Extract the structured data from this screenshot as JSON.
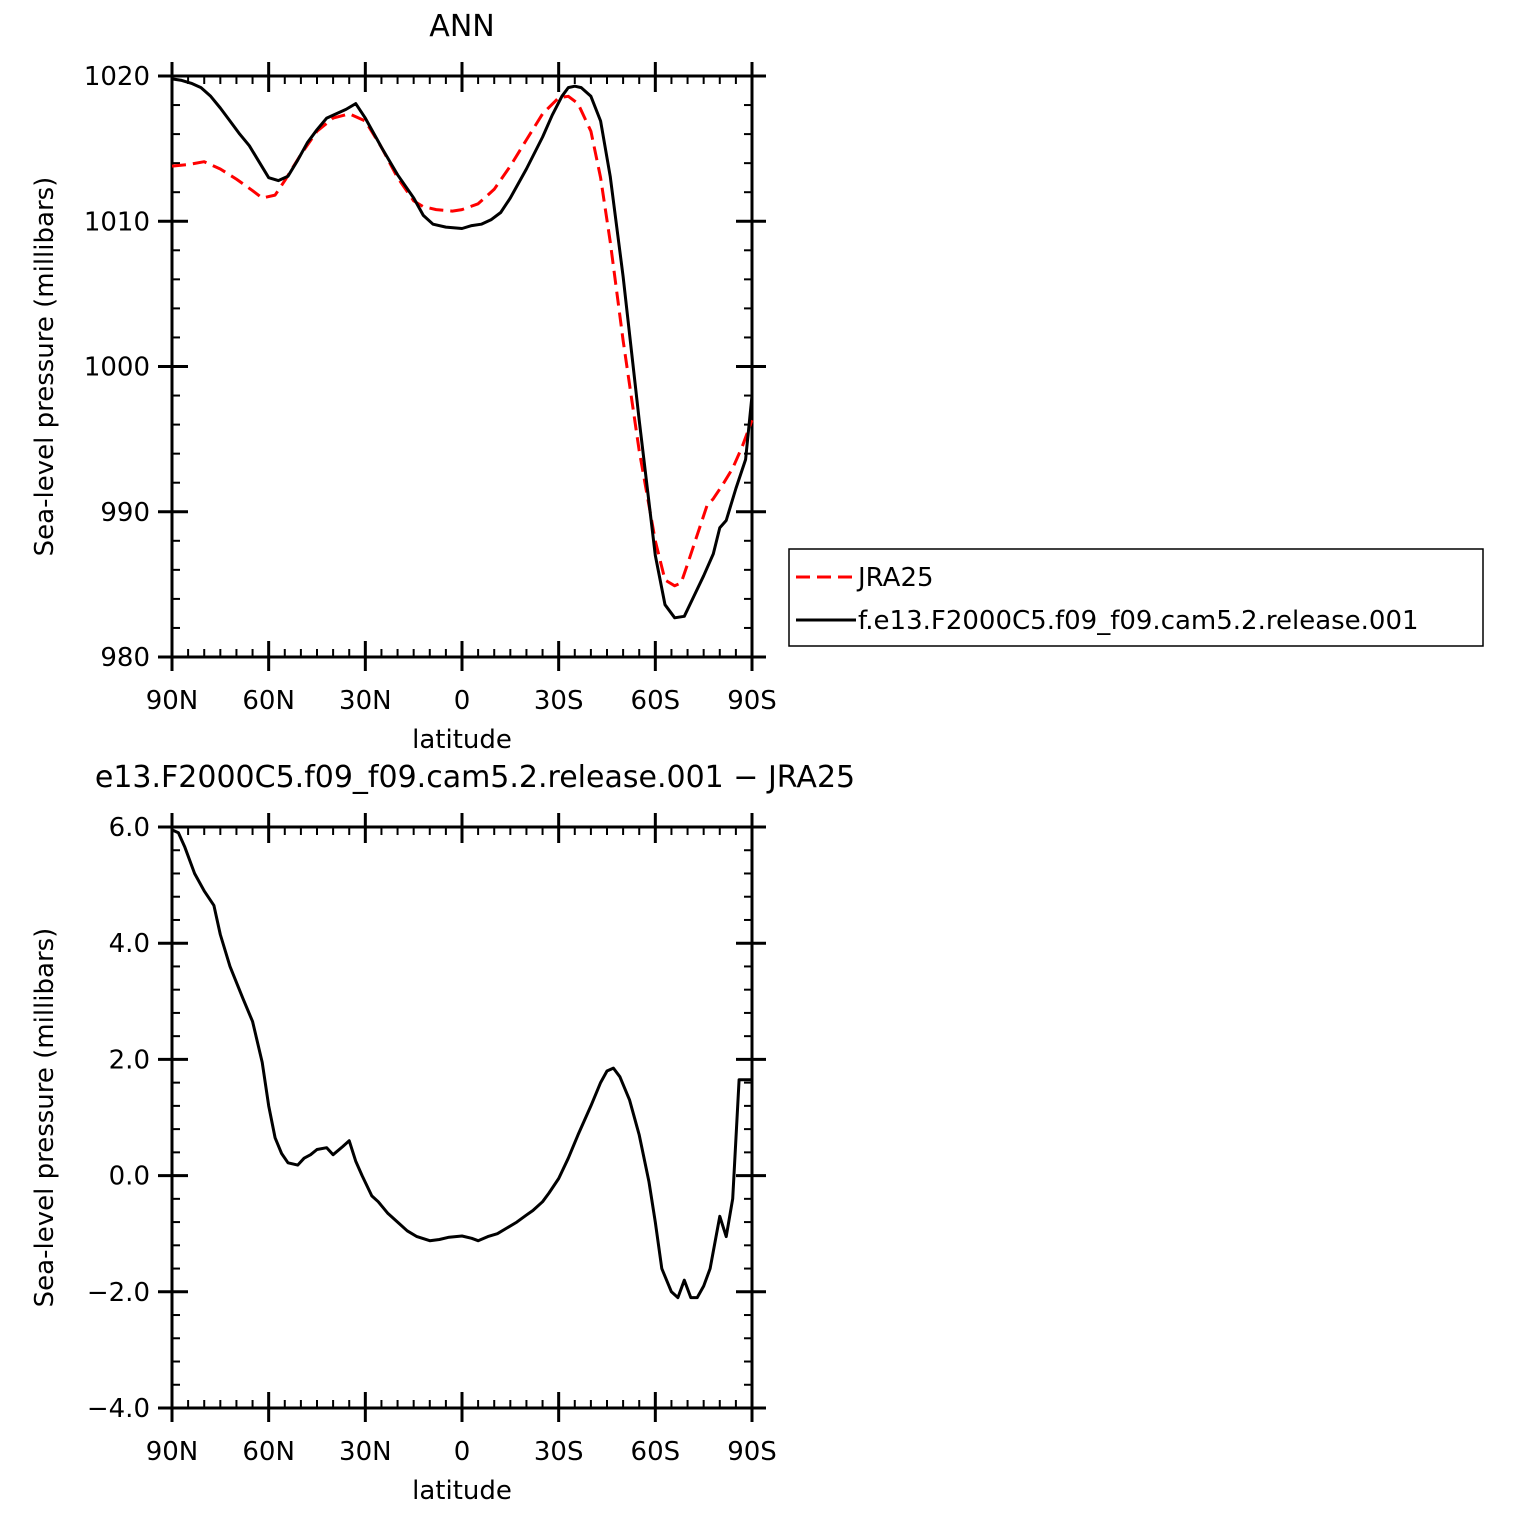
{
  "chart_data": [
    {
      "type": "line",
      "title": "ANN",
      "xlabel": "latitude",
      "ylabel": "Sea-level pressure (millibars)",
      "xlim": [
        90,
        -90
      ],
      "ylim": [
        980,
        1020
      ],
      "xticks": [
        90,
        60,
        30,
        0,
        -30,
        -60,
        -90
      ],
      "xtick_labels": [
        "90N",
        "60N",
        "30N",
        "0",
        "30S",
        "60S",
        "90S"
      ],
      "yticks": [
        980,
        990,
        1000,
        1010,
        1020
      ],
      "ytick_labels": [
        "980",
        "990",
        "1000",
        "1010",
        "1020"
      ],
      "legend_position": "right",
      "series": [
        {
          "name": "JRA25",
          "color": "#ff0000",
          "dash": "dashed",
          "x": [
            90,
            85,
            80,
            75,
            70,
            65,
            62,
            58,
            55,
            50,
            45,
            40,
            35,
            30,
            25,
            20,
            15,
            12,
            8,
            3,
            0,
            -5,
            -10,
            -15,
            -20,
            -25,
            -30,
            -33,
            -36,
            -40,
            -43,
            -46,
            -50,
            -55,
            -60,
            -63,
            -66,
            -68,
            -70,
            -73,
            -76,
            -78,
            -81,
            -84,
            -87,
            -90
          ],
          "y": [
            1013.8,
            1013.9,
            1014.1,
            1013.6,
            1012.9,
            1012.1,
            1011.6,
            1011.8,
            1012.8,
            1014.6,
            1016.2,
            1017.1,
            1017.4,
            1016.9,
            1015.1,
            1013.0,
            1011.4,
            1011.0,
            1010.8,
            1010.7,
            1010.8,
            1011.2,
            1012.2,
            1013.8,
            1015.6,
            1017.4,
            1018.5,
            1018.6,
            1018.1,
            1016.2,
            1013.0,
            1008.6,
            1001.8,
            994.2,
            988.0,
            985.3,
            984.9,
            985.1,
            986.4,
            988.4,
            990.4,
            990.9,
            991.9,
            993.0,
            994.5,
            996.3
          ]
        },
        {
          "name": "f.e13.F2000C5.f09_f09.cam5.2.release.001",
          "color": "#000000",
          "dash": "solid",
          "x": [
            90,
            87,
            84,
            81,
            78,
            75,
            72,
            69,
            66,
            63,
            60,
            57,
            54,
            51,
            48,
            45,
            42,
            39,
            36,
            33,
            30,
            25,
            20,
            15,
            12,
            9,
            5,
            0,
            -3,
            -6,
            -9,
            -12,
            -15,
            -20,
            -25,
            -28,
            -31,
            -33,
            -35,
            -37,
            -40,
            -43,
            -46,
            -50,
            -55,
            -60,
            -63,
            -66,
            -69,
            -72,
            -75,
            -78,
            -80,
            -82,
            -85,
            -88,
            -90
          ],
          "y": [
            1019.8,
            1019.7,
            1019.5,
            1019.2,
            1018.6,
            1017.8,
            1016.9,
            1016.0,
            1015.2,
            1014.1,
            1013.0,
            1012.8,
            1013.1,
            1014.2,
            1015.4,
            1016.3,
            1017.1,
            1017.4,
            1017.7,
            1018.1,
            1017.1,
            1015.1,
            1013.2,
            1011.6,
            1010.4,
            1009.8,
            1009.6,
            1009.5,
            1009.7,
            1009.8,
            1010.1,
            1010.6,
            1011.6,
            1013.6,
            1015.8,
            1017.3,
            1018.6,
            1019.2,
            1019.3,
            1019.2,
            1018.6,
            1016.9,
            1013.1,
            1006.2,
            996.3,
            987.0,
            983.6,
            982.7,
            982.8,
            984.2,
            985.6,
            987.1,
            988.9,
            989.4,
            991.6,
            993.6,
            998.0
          ]
        }
      ]
    },
    {
      "type": "line",
      "title": "e13.F2000C5.f09_f09.cam5.2.release.001 − JRA25",
      "xlabel": "latitude",
      "ylabel": "Sea-level pressure (millibars)",
      "xlim": [
        90,
        -90
      ],
      "ylim": [
        -4.0,
        6.0
      ],
      "xticks": [
        90,
        60,
        30,
        0,
        -30,
        -60,
        -90
      ],
      "xtick_labels": [
        "90N",
        "60N",
        "30N",
        "0",
        "30S",
        "60S",
        "90S"
      ],
      "yticks": [
        -4.0,
        -2.0,
        0.0,
        2.0,
        4.0,
        6.0
      ],
      "ytick_labels": [
        "−4.0",
        "−2.0",
        "0.0",
        "2.0",
        "4.0",
        "6.0"
      ],
      "series": [
        {
          "color": "#000000",
          "dash": "solid",
          "x": [
            90,
            88,
            86,
            83,
            80,
            77,
            75,
            72,
            68,
            65,
            62,
            60,
            58,
            56,
            54,
            51,
            49,
            47,
            45,
            42,
            40,
            37,
            35,
            33,
            31,
            28,
            26,
            23,
            20,
            17,
            14,
            10,
            7,
            4,
            0,
            -3,
            -5,
            -8,
            -11,
            -14,
            -17,
            -20,
            -22,
            -25,
            -27,
            -30,
            -33,
            -36,
            -40,
            -43,
            -45,
            -47,
            -49,
            -52,
            -55,
            -58,
            -60,
            -62,
            -65,
            -67,
            -69,
            -71,
            -73,
            -75,
            -77,
            -80,
            -82,
            -84,
            -86,
            -88,
            -90
          ],
          "y": [
            5.95,
            5.9,
            5.65,
            5.2,
            4.9,
            4.65,
            4.15,
            3.6,
            3.05,
            2.65,
            1.95,
            1.2,
            0.65,
            0.38,
            0.22,
            0.18,
            0.3,
            0.36,
            0.45,
            0.48,
            0.36,
            0.5,
            0.6,
            0.25,
            0.0,
            -0.35,
            -0.45,
            -0.65,
            -0.8,
            -0.95,
            -1.05,
            -1.12,
            -1.1,
            -1.06,
            -1.04,
            -1.08,
            -1.12,
            -1.05,
            -1.0,
            -0.9,
            -0.8,
            -0.68,
            -0.6,
            -0.45,
            -0.3,
            -0.05,
            0.3,
            0.7,
            1.2,
            1.6,
            1.8,
            1.85,
            1.7,
            1.3,
            0.7,
            -0.1,
            -0.8,
            -1.6,
            -2.0,
            -2.1,
            -1.8,
            -2.1,
            -2.1,
            -1.9,
            -1.6,
            -0.7,
            -1.05,
            -0.4,
            1.65,
            1.65,
            1.65
          ]
        }
      ]
    }
  ]
}
